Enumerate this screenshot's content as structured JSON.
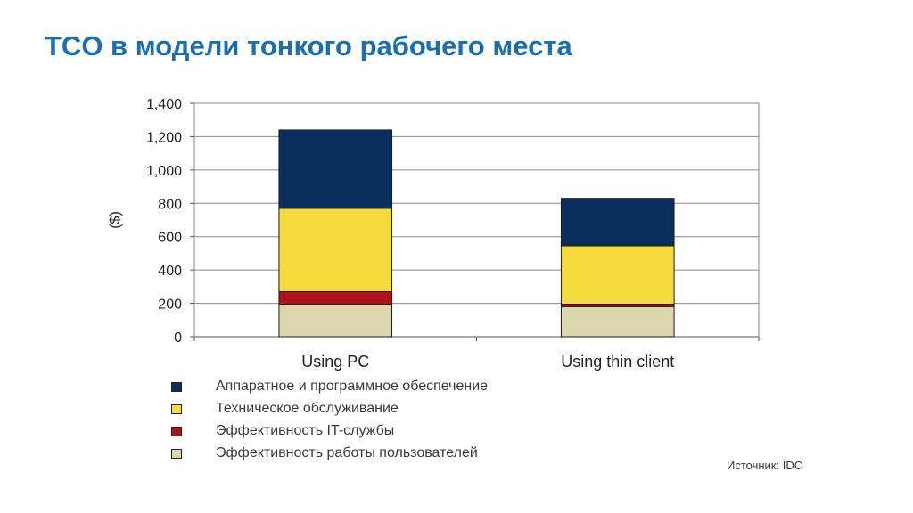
{
  "slide": {
    "title": "TCO в модели тонкого рабочего места",
    "source": "Источник: IDC"
  },
  "chart_data": {
    "type": "bar",
    "stacked": true,
    "categories": [
      "Using PC",
      "Using thin client"
    ],
    "series": [
      {
        "name": "Эффективность работы пользователей",
        "values": [
          195,
          180
        ],
        "color": "#ddd7b0"
      },
      {
        "name": "Эффективность IT-службы",
        "values": [
          75,
          15
        ],
        "color": "#b0121b"
      },
      {
        "name": "Техническое обслуживание",
        "values": [
          500,
          350
        ],
        "color": "#f5dc3c"
      },
      {
        "name": "Аппаратное и программное обеспечение",
        "values": [
          470,
          285
        ],
        "color": "#0a2f5e"
      }
    ],
    "ylabel": "($)",
    "ylim": [
      0,
      1400
    ],
    "yticks": [
      0,
      200,
      400,
      600,
      800,
      1000,
      1200,
      1400
    ],
    "ytick_labels": [
      "0",
      "200",
      "400",
      "600",
      "800",
      "1,000",
      "1,200",
      "1,400"
    ],
    "grid": true,
    "legend_position": "bottom"
  },
  "legend": [
    {
      "label": "Аппаратное и программное обеспечение",
      "color": "#0a2f5e"
    },
    {
      "label": "Техническое обслуживание",
      "color": "#f5dc3c"
    },
    {
      "label": "Эффективность IT-службы",
      "color": "#b0121b"
    },
    {
      "label": "Эффективность работы пользователей",
      "color": "#ddd7b0"
    }
  ]
}
